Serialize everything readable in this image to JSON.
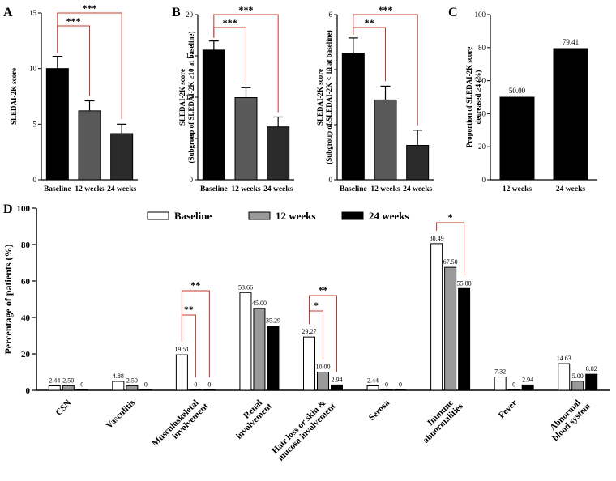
{
  "panels": {
    "A": "A",
    "B": "B",
    "C": "C",
    "D": "D"
  },
  "colors": {
    "black": "#000000",
    "dark": "#2a2a2a",
    "mid": "#595959",
    "gray": "#9a9a9a",
    "white": "#ffffff"
  },
  "chart_data": [
    {
      "id": "A",
      "type": "bar",
      "categories": [
        "Baseline",
        "12 weeks",
        "24 weeks"
      ],
      "values": [
        10.0,
        6.2,
        4.15
      ],
      "errors": [
        1.1,
        0.9,
        0.85
      ],
      "ylabel": "SLEDAI-2K score",
      "ylim": [
        0,
        15
      ],
      "yticks": [
        0,
        5,
        10,
        15
      ],
      "significance": [
        {
          "from": 0,
          "to": 1,
          "label": "***"
        },
        {
          "from": 0,
          "to": 2,
          "label": "***"
        }
      ]
    },
    {
      "id": "B1",
      "type": "bar",
      "categories": [
        "Baseline",
        "12 weeks",
        "24 weeks"
      ],
      "values": [
        15.7,
        9.95,
        6.4
      ],
      "errors": [
        1.1,
        1.2,
        1.2
      ],
      "ylabel_lines": [
        "SLEDAI-2K score",
        "(Subgroup of SLEDAI-2K ≥10 at baseline)"
      ],
      "ylim": [
        0,
        20
      ],
      "yticks": [
        0,
        5,
        10,
        15,
        20
      ],
      "significance": [
        {
          "from": 0,
          "to": 1,
          "label": "***"
        },
        {
          "from": 0,
          "to": 2,
          "label": "***"
        }
      ]
    },
    {
      "id": "B2",
      "type": "bar",
      "categories": [
        "Baseline",
        "12 weeks",
        "24 weeks"
      ],
      "values": [
        4.6,
        2.9,
        1.25
      ],
      "errors": [
        0.55,
        0.5,
        0.55
      ],
      "ylabel_lines": [
        "SLEDAI-2K score",
        "(Subgroup of SLEDAI-2K < 10 at baseline)"
      ],
      "ylim": [
        0,
        6
      ],
      "yticks": [
        0,
        2,
        4,
        6
      ],
      "significance": [
        {
          "from": 0,
          "to": 1,
          "label": "**"
        },
        {
          "from": 0,
          "to": 2,
          "label": "***"
        }
      ]
    },
    {
      "id": "C",
      "type": "bar",
      "categories": [
        "12 weeks",
        "24 weeks"
      ],
      "values": [
        50.0,
        79.41
      ],
      "data_labels": [
        "50.00",
        "79.41"
      ],
      "ylabel_lines": [
        "Proportion of SLEDAI-2K score",
        "decreased ≥4 (%)"
      ],
      "ylim": [
        0,
        100
      ],
      "yticks": [
        0,
        20,
        40,
        60,
        80,
        100
      ]
    },
    {
      "id": "D",
      "type": "bar",
      "ylabel": "Percentage of patients (%)",
      "ylim": [
        0,
        100
      ],
      "yticks": [
        0,
        20,
        40,
        60,
        80,
        100
      ],
      "categories": [
        [
          "CSN"
        ],
        [
          "Vasculitis"
        ],
        [
          "Musculoskeletal",
          "involvement"
        ],
        [
          "Renal",
          "involvement"
        ],
        [
          "Hair loss or skin &",
          "mucosa involvement"
        ],
        [
          "Serosa"
        ],
        [
          "Immune",
          "abnormalities"
        ],
        [
          "Fever"
        ],
        [
          "Abnormal",
          "blood system"
        ]
      ],
      "series": [
        {
          "name": "Baseline",
          "values": [
            2.44,
            4.88,
            19.51,
            53.66,
            29.27,
            2.44,
            80.49,
            7.32,
            14.63
          ],
          "labels": [
            "2.44",
            "4.88",
            "19.51",
            "53.66",
            "29.27",
            "2.44",
            "80.49",
            "7.32",
            "14.63"
          ]
        },
        {
          "name": "12 weeks",
          "values": [
            2.5,
            2.5,
            0,
            45.0,
            10.0,
            0,
            67.5,
            0,
            5.0
          ],
          "labels": [
            "2.50",
            "2.50",
            "0",
            "45.00",
            "10.00",
            "0",
            "67.50",
            "0",
            "5.00"
          ]
        },
        {
          "name": "24 weeks",
          "values": [
            0,
            0,
            0,
            35.29,
            2.94,
            0,
            55.88,
            2.94,
            8.82
          ],
          "labels": [
            "0",
            "0",
            "0",
            "35.29",
            "2.94",
            "0",
            "55.88",
            "2.94",
            "8.82"
          ]
        }
      ],
      "significance": [
        {
          "cat": 2,
          "from": 0,
          "to": 1,
          "label": "**"
        },
        {
          "cat": 2,
          "from": 0,
          "to": 2,
          "label": "**"
        },
        {
          "cat": 4,
          "from": 0,
          "to": 1,
          "label": "*"
        },
        {
          "cat": 4,
          "from": 0,
          "to": 2,
          "label": "**"
        },
        {
          "cat": 6,
          "from": 0,
          "to": 2,
          "label": "*"
        }
      ],
      "legend": [
        "Baseline",
        "12 weeks",
        "24 weeks"
      ],
      "legend_position": "top"
    }
  ]
}
